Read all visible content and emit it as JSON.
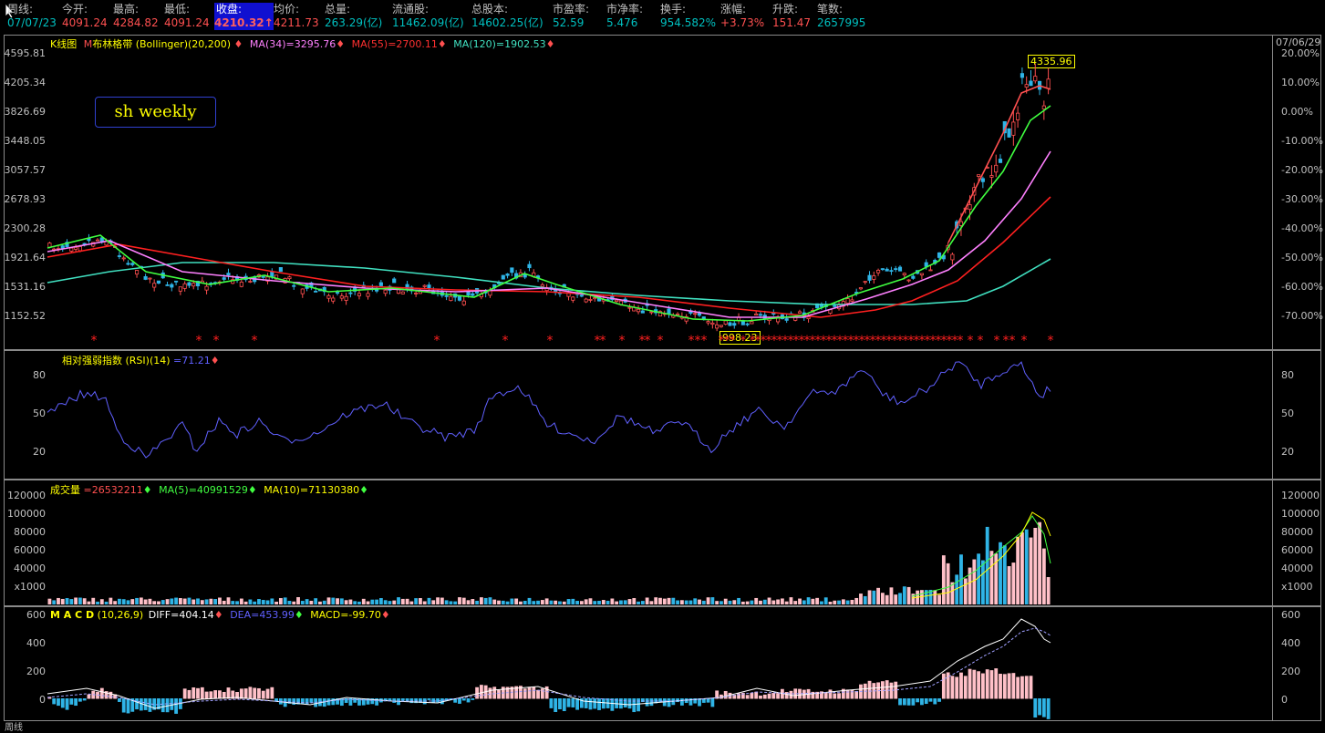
{
  "header": {
    "cells": [
      {
        "label": "周线:",
        "value": "07/07/23",
        "color": "#00c0c0"
      },
      {
        "label": "今开:",
        "value": "4091.24",
        "color": "#ff5050"
      },
      {
        "label": "最高:",
        "value": "4284.82",
        "color": "#ff5050"
      },
      {
        "label": "最低:",
        "value": "4091.24",
        "color": "#ff5050"
      },
      {
        "label": "收盘:",
        "value": "4210.32↑",
        "color": "#ff5050",
        "selected": true
      },
      {
        "label": "均价:",
        "value": "4211.73",
        "color": "#ff5050"
      },
      {
        "label": "总量:",
        "value": "263.29(亿)",
        "color": "#00c0c0"
      },
      {
        "label": "流通股:",
        "value": "11462.09(亿)",
        "color": "#00c0c0"
      },
      {
        "label": "总股本:",
        "value": "14602.25(亿)",
        "color": "#00c0c0"
      },
      {
        "label": "市盈率:",
        "value": "52.59",
        "color": "#00c0c0"
      },
      {
        "label": "市净率:",
        "value": "5.476",
        "color": "#00c0c0"
      },
      {
        "label": "换手:",
        "value": "954.582%",
        "color": "#00c0c0"
      },
      {
        "label": "涨幅:",
        "value": "+3.73%",
        "color": "#ff5050"
      },
      {
        "label": "升跌:",
        "value": "151.47",
        "color": "#ff5050"
      },
      {
        "label": "笔数:",
        "value": "2657995",
        "color": "#00c0c0"
      }
    ]
  },
  "kline": {
    "title_k": "K线图",
    "title_boll_prefix": "M",
    "title_boll": "布林格带 (Bollinger)(20,200)",
    "ma34": "MA(34)=3295.76",
    "ma55": "MA(55)=2700.11",
    "ma120": "MA(120)=1902.53",
    "label": "sh weekly",
    "date_tag": "07/06/29",
    "high_tag": "4335.96",
    "low_tag": "998.23",
    "y_left": [
      "4595.81",
      "4205.34",
      "3826.69",
      "3448.05",
      "3057.57",
      "2678.93",
      "2300.28",
      "1921.64",
      "1531.16",
      "1152.52"
    ],
    "y_right": [
      "20.00%",
      "10.00%",
      "0.00%",
      "-10.00%",
      "-20.00%",
      "-30.00%",
      "-40.00%",
      "-50.00%",
      "-60.00%",
      "-70.00%"
    ]
  },
  "rsi": {
    "title": "相对强弱指数 (RSI)(14)",
    "value": "=71.21",
    "ticks": [
      "80",
      "50",
      "20"
    ]
  },
  "volume": {
    "title": "成交量",
    "value": "=26532211",
    "ma5": "MA(5)=40991529",
    "ma10": "MA(10)=71130380",
    "ticks": [
      "120000",
      "100000",
      "80000",
      "60000",
      "40000",
      "x1000"
    ]
  },
  "macd": {
    "title": "M A C D",
    "params": "(10,26,9)",
    "diff": "DIFF=404.14",
    "dea": "DEA=453.99",
    "macd": "MACD=-99.70",
    "ticks": [
      "600",
      "400",
      "200",
      "0"
    ]
  },
  "footer": {
    "label": "周线"
  },
  "colors": {
    "up": "#ff5050",
    "down": "#2fb4e6",
    "ma34": "#ff80ff",
    "ma55": "#ff2020",
    "ma120": "#40e0c0",
    "rsi": "#6060ff",
    "yellow": "#ffff00",
    "green": "#40ff40",
    "white": "#ffffff",
    "pinkbar": "#ffc0c8"
  }
}
